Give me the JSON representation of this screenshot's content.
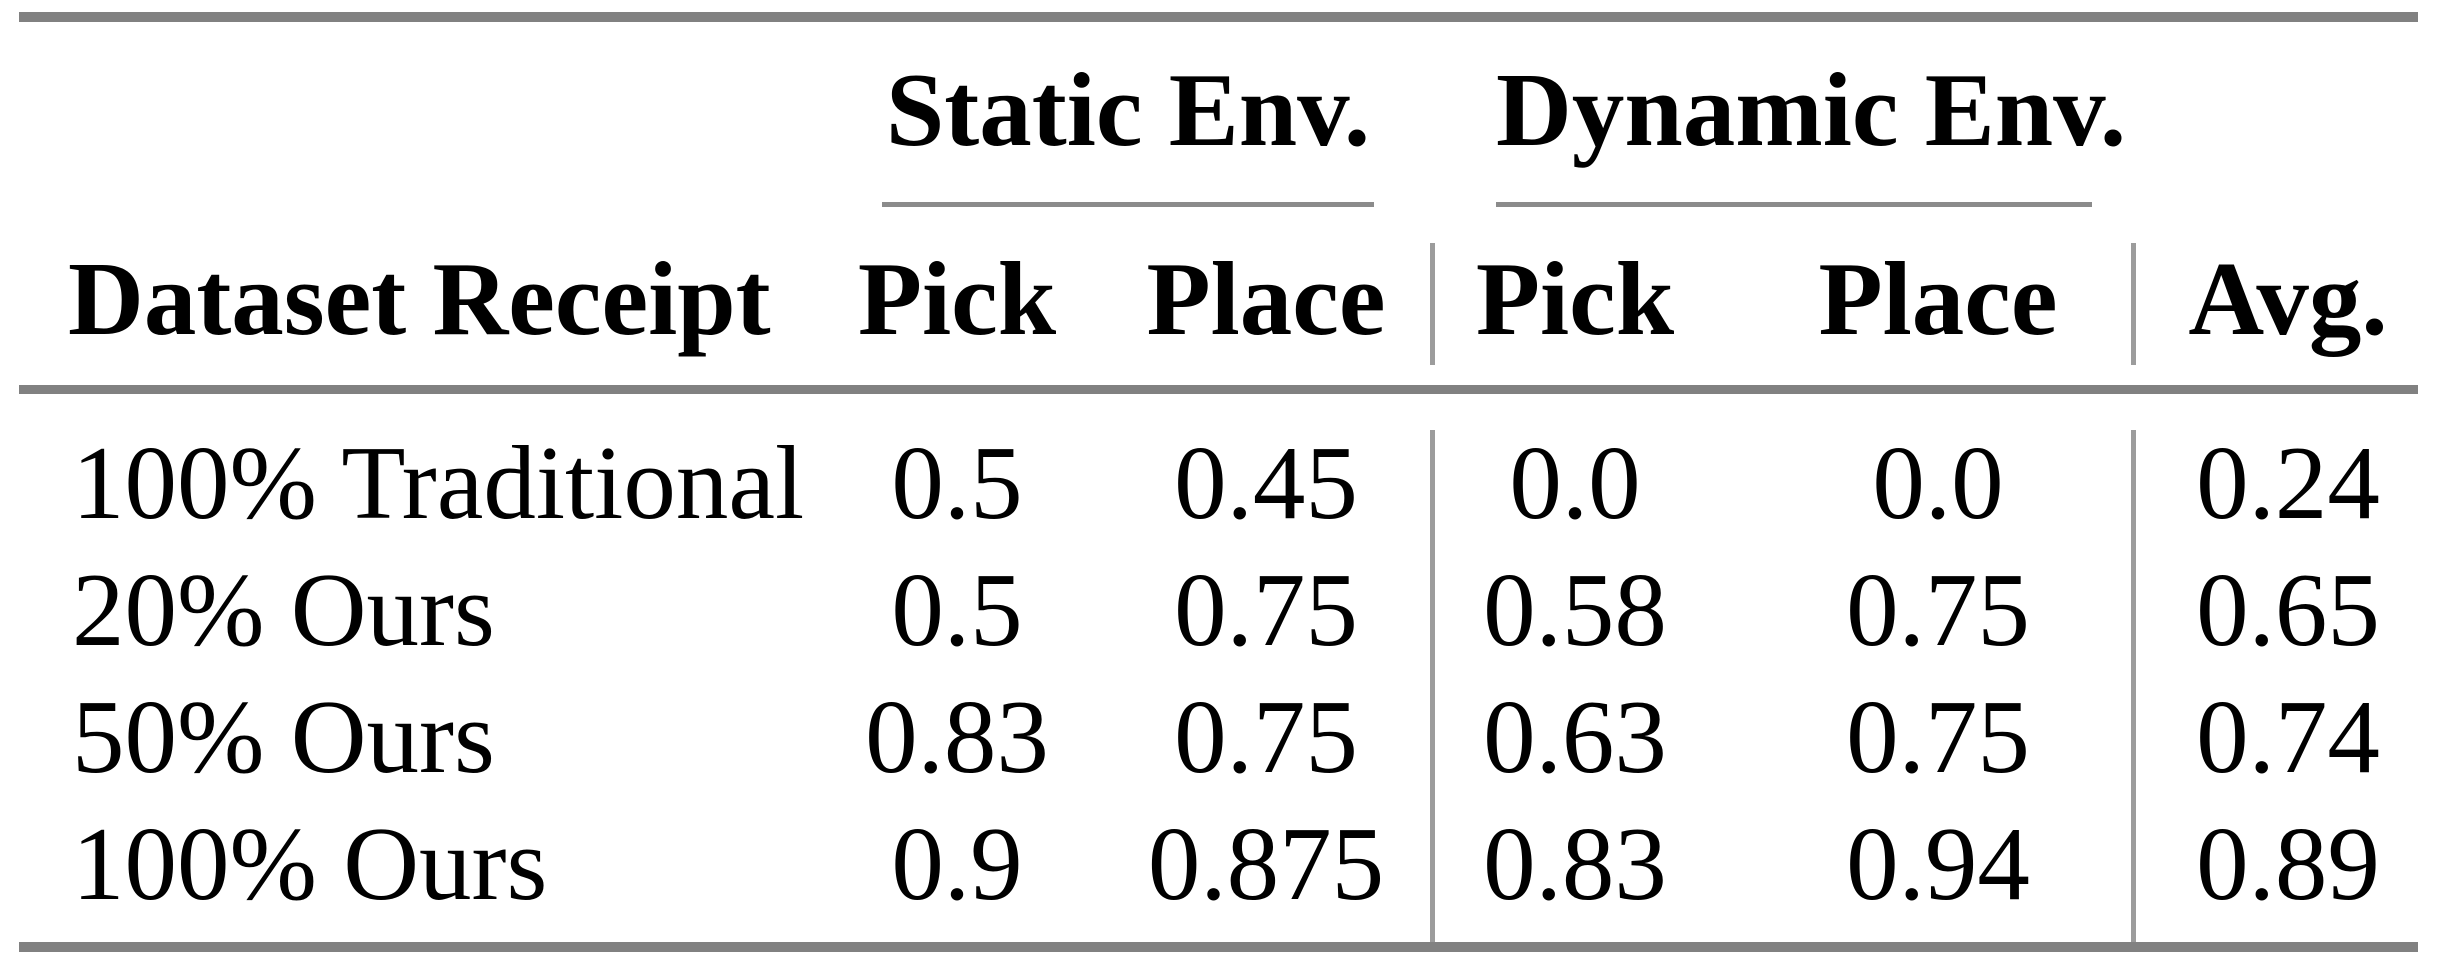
{
  "table": {
    "title": "dataset-receipt-results-table",
    "col_groups": {
      "static": "Static Env.",
      "dynamic": "Dynamic Env."
    },
    "headers": {
      "row_label": "Dataset Receipt",
      "static_pick": "Pick",
      "static_place": "Place",
      "dynamic_pick": "Pick",
      "dynamic_place": "Place",
      "avg": "Avg."
    },
    "rows": [
      {
        "label": "100% Traditional",
        "static_pick": "0.5",
        "static_place": "0.45",
        "dynamic_pick": "0.0",
        "dynamic_place": "0.0",
        "avg": "0.24"
      },
      {
        "label": "20% Ours",
        "static_pick": "0.5",
        "static_place": "0.75",
        "dynamic_pick": "0.58",
        "dynamic_place": "0.75",
        "avg": "0.65"
      },
      {
        "label": "50% Ours",
        "static_pick": "0.83",
        "static_place": "0.75",
        "dynamic_pick": "0.63",
        "dynamic_place": "0.75",
        "avg": "0.74"
      },
      {
        "label": "100% Ours",
        "static_pick": "0.9",
        "static_place": "0.875",
        "dynamic_pick": "0.83",
        "dynamic_place": "0.94",
        "avg": "0.89"
      }
    ],
    "colors": {
      "rule_heavy": "#818181",
      "rule_light": "#8b8b8b",
      "rule_vertical": "#9c9c9c",
      "text": "#000000",
      "background": "#ffffff"
    }
  }
}
